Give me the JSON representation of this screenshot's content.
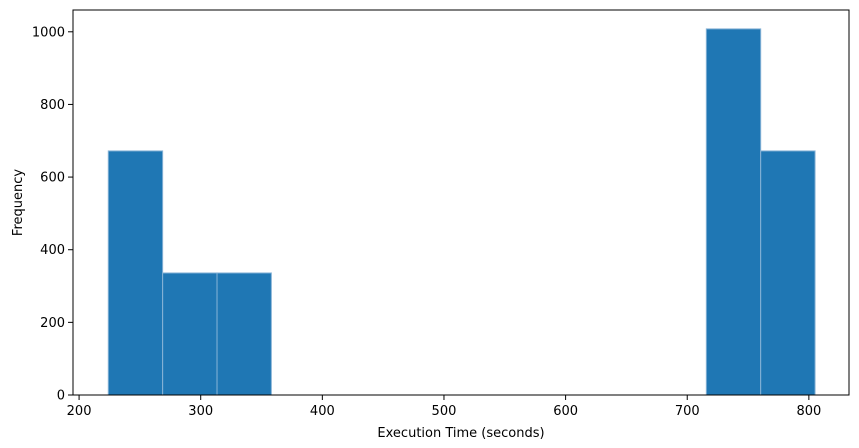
{
  "chart_data": {
    "type": "bar",
    "subtype": "histogram",
    "title": "",
    "xlabel": "Execution Time (seconds)",
    "ylabel": "Frequency",
    "xlim": [
      195,
      833
    ],
    "ylim": [
      0,
      1060
    ],
    "xticks": [
      200,
      300,
      400,
      500,
      600,
      700,
      800
    ],
    "yticks": [
      0,
      200,
      400,
      600,
      800,
      1000
    ],
    "bins": [
      {
        "start": 224,
        "end": 268.7,
        "count": 672
      },
      {
        "start": 268.7,
        "end": 313.4,
        "count": 336
      },
      {
        "start": 313.4,
        "end": 358.1,
        "count": 336
      },
      {
        "start": 358.1,
        "end": 402.8,
        "count": 0
      },
      {
        "start": 402.8,
        "end": 447.5,
        "count": 0
      },
      {
        "start": 447.5,
        "end": 492.2,
        "count": 0
      },
      {
        "start": 492.2,
        "end": 536.9,
        "count": 0
      },
      {
        "start": 536.9,
        "end": 581.6,
        "count": 0
      },
      {
        "start": 581.6,
        "end": 626.3,
        "count": 0
      },
      {
        "start": 626.3,
        "end": 671.0,
        "count": 0
      },
      {
        "start": 671.0,
        "end": 715.7,
        "count": 0
      },
      {
        "start": 715.7,
        "end": 760.4,
        "count": 1008
      },
      {
        "start": 760.4,
        "end": 805.1,
        "count": 672
      }
    ],
    "bar_color": "#1f77b4",
    "edge_color": "#87b3d6",
    "grid": false,
    "legend": "none"
  }
}
